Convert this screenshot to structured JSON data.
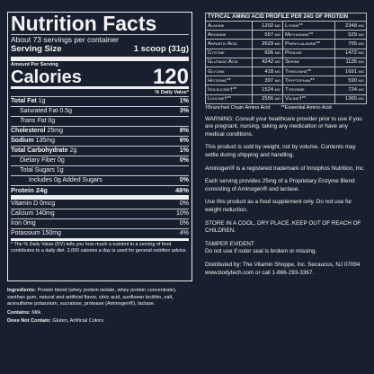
{
  "nutrition": {
    "title": "Nutrition Facts",
    "servings": "About 73 servings per container",
    "serving_size_label": "Serving Size",
    "serving_size_value": "1 scoop (31g)",
    "amount_per_serving": "Amount Per Serving",
    "calories_label": "Calories",
    "calories_value": "120",
    "dv_header": "% Daily Value*",
    "rows": [
      {
        "name": "Total Fat",
        "amount": "1g",
        "dv": "1%"
      },
      {
        "name": "Saturated Fat",
        "amount": "0.5g",
        "dv": "3%"
      },
      {
        "name": "Trans Fat",
        "amount": "0g"
      },
      {
        "name": "Cholesterol",
        "amount": "25mg",
        "dv": "8%"
      },
      {
        "name": "Sodium",
        "amount": "135mg",
        "dv": "6%"
      },
      {
        "name": "Total Carbohydrate",
        "amount": "2g",
        "dv": "1%"
      },
      {
        "name": "Dietary Fiber",
        "amount": "0g",
        "dv": "0%"
      },
      {
        "name": "Total Sugars",
        "amount": "1g"
      },
      {
        "name": "Includes 0g Added Sugars",
        "dv": "0%"
      },
      {
        "name": "Protein",
        "amount": "24g",
        "dv": "48%"
      }
    ],
    "vitamins": [
      {
        "name": "Vitamin D 0mcg",
        "dv": "0%"
      },
      {
        "name": "Calcium 140mg",
        "dv": "10%"
      },
      {
        "name": "Iron 0mg",
        "dv": "0%"
      },
      {
        "name": "Potassium 150mg",
        "dv": "4%"
      }
    ],
    "footnote": "* The % Daily Value (DV) tells you how much a nutrient in a serving of food contributes to a daily diet. 2,000 calories a day is used for general nutrition advice."
  },
  "ingredients": {
    "label": "Ingredients:",
    "text": "Protein blend (whey protein isolate, whey protein concentrate), xanthan gum, natural and artificial flavor, citric acid, sunflower lecithin, salt, acesulfame potassium, sucralose, protease (Aminogen®), lactase.",
    "contains_label": "Contains:",
    "contains": "Milk.",
    "not_contain_label": "Does Not Contain:",
    "not_contain": "Gluten, Artificial Colors."
  },
  "amino": {
    "title": "TYPICAL AMINO ACID PROFILE PER 24G OF PROTEIN",
    "rows": [
      [
        [
          "Alanine",
          "1202 mg"
        ],
        [
          "Lysine**",
          "2348 mg"
        ]
      ],
      [
        [
          "Arginine",
          "557 mg"
        ],
        [
          "Methionine**",
          "529 mg"
        ]
      ],
      [
        [
          "Aspartic Acid",
          "2629 mg"
        ],
        [
          "Phenylalanine**",
          "755 mg"
        ]
      ],
      [
        [
          "Cystine",
          "606 mg"
        ],
        [
          "Proline",
          "1472 mg"
        ]
      ],
      [
        [
          "Glutamic Acid",
          "4242 mg"
        ],
        [
          "Serine",
          "1135 mg"
        ]
      ],
      [
        [
          "Glycine",
          "418 mg"
        ],
        [
          "Threonine**",
          "1691 mg"
        ]
      ],
      [
        [
          "Histidine**",
          "397 mg"
        ],
        [
          "Tryptophan**",
          "590 mg"
        ]
      ],
      [
        [
          "Isoleucine†**",
          "1524 mg"
        ],
        [
          "Tyrosine",
          "724 mg"
        ]
      ],
      [
        [
          "Leucine†**",
          "2556 mg"
        ],
        [
          "Valine†**",
          "1365 mg"
        ]
      ]
    ],
    "footnote_bcaa": "†Branched Chain Amino Acid",
    "footnote_eaa": "**Essential Amino Acid"
  },
  "notes": [
    "WARNING: Consult your healthcare provider prior to use if you are pregnant, nursing, taking any medication or have any medical conditions.",
    "This product is sold by weight, not by volume. Contents may settle during shipping and handling.",
    "Aminogen® is a registered trademark of Innophos Nutrition, Inc.",
    "Each serving provides 25mg of a Proprietary Enzyme Blend consisting of Aminogen® and lactase.",
    "Use this product as a food supplement only. Do not use for weight reduction.",
    "STORE IN A COOL, DRY PLACE. KEEP OUT OF REACH OF CHILDREN.",
    "TAMPER EVIDENT",
    "Do not use if outer seal is broken or missing.",
    "Distributed by: The Vitamin Shoppe, Inc. Secaucus, NJ 07094 www.bodytech.com or call 1-866-293-3367."
  ]
}
